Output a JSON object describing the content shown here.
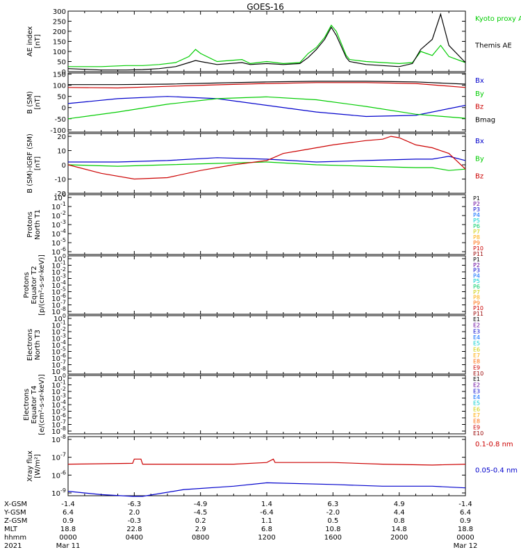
{
  "title": "GOES-16",
  "chart_data": [
    {
      "type": "line",
      "panel": "AE index",
      "ylabel": [
        "AE index",
        "[nT]"
      ],
      "yticks": [
        "300",
        "250",
        "200",
        "150",
        "100",
        "50",
        "0"
      ],
      "ylim": [
        0,
        300
      ],
      "legend": [
        {
          "label": "Kyoto proxy AE",
          "color": "#00cc00"
        },
        {
          "label": "Themis AE",
          "color": "#000000"
        }
      ],
      "series": [
        {
          "name": "Kyoto proxy AE",
          "color": "#00cc00",
          "x": [
            0,
            2,
            3.5,
            4.5,
            5.5,
            6.5,
            7.3,
            7.7,
            8,
            9,
            10.5,
            11,
            12,
            13,
            14,
            14.5,
            15,
            15.5,
            15.9,
            16.2,
            16.8,
            17,
            18,
            19,
            20,
            20.8,
            21.3,
            22,
            22.5,
            23,
            24
          ],
          "y": [
            25,
            25,
            30,
            30,
            35,
            45,
            75,
            110,
            90,
            50,
            60,
            40,
            50,
            40,
            45,
            90,
            120,
            170,
            230,
            200,
            80,
            60,
            50,
            45,
            40,
            45,
            100,
            80,
            130,
            75,
            45
          ]
        },
        {
          "name": "Themis AE",
          "color": "#000000",
          "x": [
            0,
            2,
            3.5,
            4.5,
            5.5,
            6.5,
            7.3,
            7.7,
            8,
            9,
            10.5,
            11,
            12,
            13,
            14,
            14.5,
            15,
            15.5,
            15.9,
            16.2,
            16.8,
            17,
            18,
            19,
            20,
            20.8,
            21.3,
            22,
            22.5,
            23,
            24
          ],
          "y": [
            15,
            8,
            8,
            10,
            15,
            25,
            45,
            55,
            50,
            35,
            45,
            35,
            40,
            35,
            40,
            70,
            110,
            160,
            220,
            180,
            70,
            50,
            35,
            30,
            25,
            40,
            110,
            160,
            285,
            130,
            45
          ]
        }
      ]
    },
    {
      "type": "line",
      "panel": "B (SM)",
      "ylabel": [
        "B (SM)",
        "[nT]"
      ],
      "yticks": [
        "150",
        "100",
        "50",
        "0",
        "-50",
        "-100"
      ],
      "ylim": [
        -110,
        155
      ],
      "legend": [
        {
          "label": "Bx",
          "color": "#0000cc"
        },
        {
          "label": "By",
          "color": "#00cc00"
        },
        {
          "label": "Bz",
          "color": "#cc0000"
        },
        {
          "label": "Bmag",
          "color": "#000000"
        }
      ],
      "series": [
        {
          "name": "Bx",
          "color": "#0000cc",
          "x": [
            0,
            3,
            6,
            9,
            12,
            15,
            18,
            21,
            24
          ],
          "y": [
            18,
            40,
            50,
            40,
            10,
            -20,
            -40,
            -35,
            10
          ]
        },
        {
          "name": "By",
          "color": "#00cc00",
          "x": [
            0,
            3,
            6,
            9,
            12,
            15,
            18,
            21,
            24
          ],
          "y": [
            -50,
            -20,
            15,
            40,
            48,
            35,
            5,
            -30,
            -48
          ]
        },
        {
          "name": "Bz",
          "color": "#cc0000",
          "x": [
            0,
            3,
            6,
            9,
            12,
            15,
            18,
            21,
            24
          ],
          "y": [
            90,
            88,
            95,
            102,
            108,
            112,
            112,
            108,
            90
          ]
        },
        {
          "name": "Bmag",
          "color": "#000000",
          "x": [
            0,
            3,
            6,
            9,
            12,
            15,
            18,
            21,
            24
          ],
          "y": [
            103,
            103,
            105,
            110,
            115,
            118,
            118,
            115,
            105
          ]
        }
      ]
    },
    {
      "type": "line",
      "panel": "B (SM)-IGRF (SM)",
      "ylabel": [
        "B (SM)-IGRF (SM)",
        "[nT]"
      ],
      "yticks": [
        "20",
        "10",
        "0",
        "-10",
        "-20"
      ],
      "ylim": [
        -20,
        22
      ],
      "legend": [
        {
          "label": "Bx",
          "color": "#0000cc"
        },
        {
          "label": "By",
          "color": "#00cc00"
        },
        {
          "label": "Bz",
          "color": "#cc0000"
        }
      ],
      "series": [
        {
          "name": "Bx",
          "color": "#0000cc",
          "x": [
            0,
            3,
            6,
            9,
            12,
            15,
            18,
            21,
            22,
            23,
            24
          ],
          "y": [
            2,
            2,
            3,
            5,
            4,
            2,
            3,
            4,
            4,
            6,
            3
          ]
        },
        {
          "name": "By",
          "color": "#00cc00",
          "x": [
            0,
            3,
            6,
            9,
            12,
            15,
            18,
            21,
            22,
            23,
            24
          ],
          "y": [
            0,
            -1,
            0,
            1,
            2,
            0,
            -1,
            -2,
            -2,
            -4,
            -3
          ]
        },
        {
          "name": "Bz",
          "color": "#cc0000",
          "x": [
            0,
            2,
            4,
            6,
            8,
            10,
            12,
            13,
            14,
            16,
            18,
            19,
            19.5,
            20,
            21,
            22,
            23,
            24
          ],
          "y": [
            0,
            -6,
            -10,
            -9,
            -4,
            0,
            3,
            8,
            10,
            14,
            17,
            18,
            20,
            19,
            14,
            12,
            8,
            -3
          ]
        }
      ]
    },
    {
      "type": "line",
      "panel": "Protons North T1",
      "ylabel": [
        "Protons",
        "North T1"
      ],
      "yticks": [
        "10^0",
        "10^-1",
        "10^-2",
        "10^-3",
        "10^-4",
        "10^-5",
        "10^-6"
      ],
      "legend": [
        {
          "label": "P1",
          "color": "#000000"
        },
        {
          "label": "P2",
          "color": "#660099"
        },
        {
          "label": "P3",
          "color": "#0000cc"
        },
        {
          "label": "P4",
          "color": "#0066ff"
        },
        {
          "label": "P5",
          "color": "#00cccc"
        },
        {
          "label": "P6",
          "color": "#00cc66"
        },
        {
          "label": "P7",
          "color": "#cccc00"
        },
        {
          "label": "P8",
          "color": "#ffaa00"
        },
        {
          "label": "P9",
          "color": "#ff6600"
        },
        {
          "label": "P10",
          "color": "#cc0000"
        },
        {
          "label": "P11",
          "color": "#990000"
        }
      ],
      "series": []
    },
    {
      "type": "line",
      "panel": "Protons Equator T2",
      "ylabel": [
        "Protons",
        "Equator T2",
        "[p/(cm²-s-sr-keV)]"
      ],
      "yticks": [
        "10^0",
        "10^-1",
        "10^-2",
        "10^-3",
        "10^-4",
        "10^-5",
        "10^-6",
        "10^-7",
        "10^-8"
      ],
      "legend": [
        {
          "label": "P1",
          "color": "#000000"
        },
        {
          "label": "P2",
          "color": "#660099"
        },
        {
          "label": "P3",
          "color": "#0000cc"
        },
        {
          "label": "P4",
          "color": "#0066ff"
        },
        {
          "label": "P5",
          "color": "#00cccc"
        },
        {
          "label": "P6",
          "color": "#00cc66"
        },
        {
          "label": "P7",
          "color": "#cccc00"
        },
        {
          "label": "P8",
          "color": "#ffaa00"
        },
        {
          "label": "P9",
          "color": "#ff6600"
        },
        {
          "label": "P10",
          "color": "#cc0000"
        },
        {
          "label": "P11",
          "color": "#990000"
        }
      ],
      "series": []
    },
    {
      "type": "line",
      "panel": "Electrons North T3",
      "ylabel": [
        "Electrons",
        "North T3"
      ],
      "yticks": [
        "10^0",
        "10^-1",
        "10^-2",
        "10^-3",
        "10^-4",
        "10^-5",
        "10^-6",
        "10^-7",
        "10^-8"
      ],
      "legend": [
        {
          "label": "E1",
          "color": "#000000"
        },
        {
          "label": "E2",
          "color": "#660099"
        },
        {
          "label": "E3",
          "color": "#0000cc"
        },
        {
          "label": "E4",
          "color": "#0066ff"
        },
        {
          "label": "E5",
          "color": "#00cccc"
        },
        {
          "label": "E6",
          "color": "#cccc00"
        },
        {
          "label": "E7",
          "color": "#ffaa00"
        },
        {
          "label": "E8",
          "color": "#ff6600"
        },
        {
          "label": "E9",
          "color": "#cc0000"
        },
        {
          "label": "E10",
          "color": "#990000"
        }
      ],
      "series": []
    },
    {
      "type": "line",
      "panel": "Electrons Equator T4",
      "ylabel": [
        "Electrons",
        "Equator T4",
        "[e/(cm²-s-sr-keV)]"
      ],
      "yticks": [
        "10^0",
        "10^-1",
        "10^-2",
        "10^-3",
        "10^-4",
        "10^-5",
        "10^-6",
        "10^-7",
        "10^-8"
      ],
      "legend": [
        {
          "label": "E1",
          "color": "#000000"
        },
        {
          "label": "E2",
          "color": "#660099"
        },
        {
          "label": "E3",
          "color": "#0000cc"
        },
        {
          "label": "E4",
          "color": "#0066ff"
        },
        {
          "label": "E5",
          "color": "#00cccc"
        },
        {
          "label": "E6",
          "color": "#cccc00"
        },
        {
          "label": "E7",
          "color": "#ffaa00"
        },
        {
          "label": "E8",
          "color": "#ff6600"
        },
        {
          "label": "E9",
          "color": "#cc0000"
        },
        {
          "label": "E10",
          "color": "#990000"
        }
      ],
      "series": []
    },
    {
      "type": "line",
      "panel": "Xray flux",
      "ylabel": [
        "Xray flux",
        "[W/m²]"
      ],
      "yticks": [
        "10^-8",
        "10^-7",
        "10^-6",
        "10^-9"
      ],
      "legend": [
        {
          "label": "0.1-0.8 nm",
          "color": "#cc0000"
        },
        {
          "label": "0.05-0.4 nm",
          "color": "#0000cc"
        }
      ],
      "series": [
        {
          "name": "0.1-0.8 nm",
          "color": "#cc0000",
          "x": [
            0,
            3.9,
            4.0,
            4.4,
            4.5,
            7,
            10,
            12,
            12.4,
            12.5,
            12.6,
            16,
            19,
            22,
            24
          ],
          "y": [
            -7.3,
            -7.25,
            -7.0,
            -7.0,
            -7.3,
            -7.3,
            -7.3,
            -7.2,
            -7.0,
            -7.2,
            -7.2,
            -7.2,
            -7.3,
            -7.35,
            -7.3
          ]
        },
        {
          "name": "0.05-0.4 nm",
          "color": "#0000cc",
          "x": [
            0,
            2,
            3.9,
            4.5,
            7,
            10,
            12,
            16,
            19,
            22,
            24
          ],
          "y": [
            -8.9,
            -9.1,
            -9.2,
            -9.2,
            -8.8,
            -8.6,
            -8.4,
            -8.5,
            -8.6,
            -8.6,
            -8.7
          ]
        }
      ]
    }
  ],
  "orbit": {
    "row_labels": [
      "X-GSM",
      "Y-GSM",
      "Z-GSM",
      "MLT",
      "hhmm",
      "2021"
    ],
    "columns": [
      [
        "-1.4",
        "6.4",
        "0.9",
        "18.8",
        "0000",
        "Mar 11"
      ],
      [
        "-6.3",
        "2.0",
        "-0.3",
        "22.8",
        "0400",
        ""
      ],
      [
        "-4.9",
        "-4.5",
        "0.2",
        "2.9",
        "0800",
        ""
      ],
      [
        "1.4",
        "-6.4",
        "1.1",
        "6.8",
        "1200",
        ""
      ],
      [
        "6.3",
        "-2.0",
        "0.5",
        "10.8",
        "1600",
        ""
      ],
      [
        "4.9",
        "4.4",
        "0.8",
        "14.8",
        "2000",
        ""
      ],
      [
        "-1.4",
        "6.4",
        "0.9",
        "18.8",
        "0000",
        "Mar 12"
      ]
    ]
  }
}
